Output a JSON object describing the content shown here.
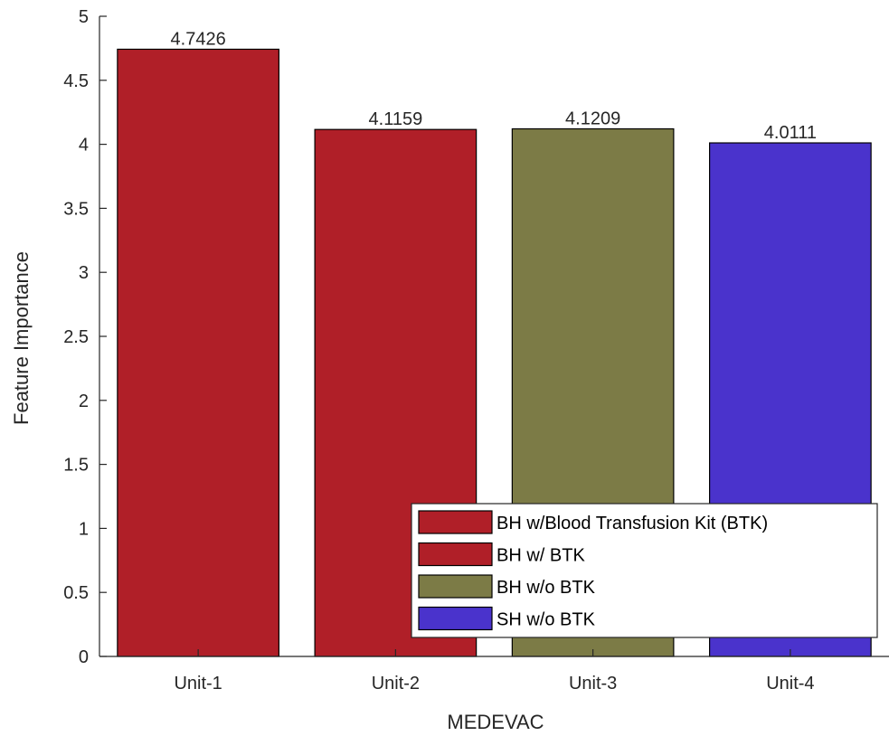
{
  "chart_data": {
    "type": "bar",
    "xlabel": "MEDEVAC",
    "ylabel": "Feature Importance",
    "categories": [
      "Unit-1",
      "Unit-2",
      "Unit-3",
      "Unit-4"
    ],
    "values": [
      4.7426,
      4.1159,
      4.1209,
      4.0111
    ],
    "value_labels": [
      "4.7426",
      "4.1159",
      "4.1209",
      "4.0111"
    ],
    "bar_colors": [
      "#b01f28",
      "#b01f28",
      "#7c7b46",
      "#4a33cc"
    ],
    "ylim": [
      0,
      5
    ],
    "yticks": [
      0,
      0.5,
      1,
      1.5,
      2,
      2.5,
      3,
      3.5,
      4,
      4.5,
      5
    ],
    "ytick_labels": [
      "0",
      "0.5",
      "1",
      "1.5",
      "2",
      "2.5",
      "3",
      "3.5",
      "4",
      "4.5",
      "5"
    ],
    "grid": false,
    "legend": {
      "placement": "bottom-right",
      "entries": [
        {
          "label": "BH w/Blood Transfusion Kit (BTK)",
          "color": "#b01f28"
        },
        {
          "label": "BH w/ BTK",
          "color": "#b01f28"
        },
        {
          "label": "BH w/o BTK",
          "color": "#7c7b46"
        },
        {
          "label": "SH w/o BTK",
          "color": "#4a33cc"
        }
      ]
    }
  }
}
